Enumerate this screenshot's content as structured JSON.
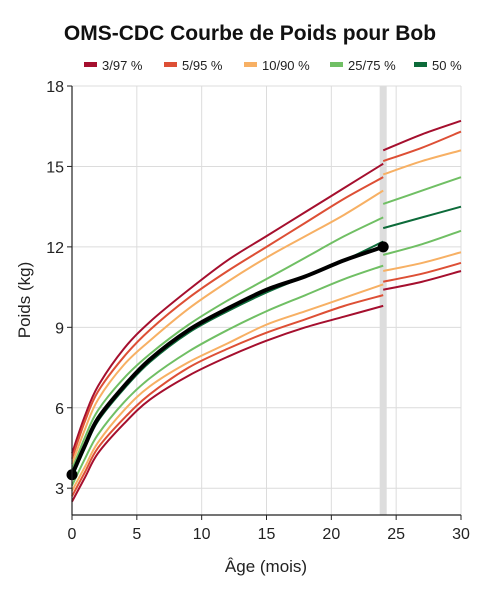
{
  "chart_data": {
    "type": "line",
    "title": "OMS-CDC Courbe de Poids pour Bob",
    "xlabel": "Âge (mois)",
    "ylabel": "Poids (kg)",
    "xlim": [
      0,
      30
    ],
    "ylim": [
      2,
      18
    ],
    "xticks": [
      "0",
      "5",
      "10",
      "15",
      "20",
      "25",
      "30"
    ],
    "yticks": [
      "3",
      "6",
      "9",
      "12",
      "15",
      "18"
    ],
    "grid": true,
    "legend_position": "top",
    "legend": [
      {
        "label": "3/97 %",
        "color": "#a50f2e"
      },
      {
        "label": "5/95 %",
        "color": "#dd4f35"
      },
      {
        "label": "10/90 %",
        "color": "#f7b064"
      },
      {
        "label": "25/75 %",
        "color": "#70bf64"
      },
      {
        "label": "50 %",
        "color": "#0d6b3a"
      }
    ],
    "age_marker": {
      "x": 24,
      "color": "#dddddd"
    },
    "series_early": [
      {
        "group": "3/97 %",
        "color": "#a50f2e",
        "x": [
          0,
          1,
          2,
          4,
          6,
          9,
          12,
          15,
          18,
          21,
          24
        ],
        "y": [
          4.3,
          5.7,
          6.8,
          8.2,
          9.2,
          10.4,
          11.5,
          12.4,
          13.3,
          14.2,
          15.1
        ]
      },
      {
        "group": "5/95 %",
        "color": "#dd4f35",
        "x": [
          0,
          1,
          2,
          4,
          6,
          9,
          12,
          15,
          18,
          21,
          24
        ],
        "y": [
          4.1,
          5.5,
          6.6,
          7.9,
          8.9,
          10.1,
          11.1,
          12.0,
          12.9,
          13.8,
          14.6
        ]
      },
      {
        "group": "10/90 %",
        "color": "#f7b064",
        "x": [
          0,
          1,
          2,
          4,
          6,
          9,
          12,
          15,
          18,
          21,
          24
        ],
        "y": [
          3.9,
          5.2,
          6.3,
          7.6,
          8.5,
          9.7,
          10.7,
          11.6,
          12.4,
          13.2,
          14.1
        ]
      },
      {
        "group": "25/75 %",
        "color": "#70bf64",
        "x": [
          0,
          1,
          2,
          4,
          6,
          9,
          12,
          15,
          18,
          21,
          24
        ],
        "y": [
          3.7,
          4.9,
          5.9,
          7.1,
          8.0,
          9.1,
          10.0,
          10.8,
          11.6,
          12.4,
          13.1
        ]
      },
      {
        "group": "50 %",
        "color": "#0d6b3a",
        "x": [
          0,
          1,
          2,
          4,
          6,
          9,
          12,
          15,
          18,
          21,
          24
        ],
        "y": [
          3.4,
          4.5,
          5.5,
          6.7,
          7.7,
          8.8,
          9.6,
          10.3,
          10.9,
          11.5,
          12.2
        ]
      },
      {
        "group": "25/75 %",
        "color": "#70bf64",
        "x": [
          0,
          1,
          2,
          4,
          6,
          9,
          12,
          15,
          18,
          21,
          24
        ],
        "y": [
          3.1,
          4.1,
          5.0,
          6.2,
          7.1,
          8.1,
          8.9,
          9.6,
          10.2,
          10.8,
          11.3
        ]
      },
      {
        "group": "10/90 %",
        "color": "#f7b064",
        "x": [
          0,
          1,
          2,
          4,
          6,
          9,
          12,
          15,
          18,
          21,
          24
        ],
        "y": [
          2.9,
          3.8,
          4.7,
          5.9,
          6.8,
          7.7,
          8.4,
          9.1,
          9.6,
          10.1,
          10.6
        ]
      },
      {
        "group": "5/95 %",
        "color": "#dd4f35",
        "x": [
          0,
          1,
          2,
          4,
          6,
          9,
          12,
          15,
          18,
          21,
          24
        ],
        "y": [
          2.7,
          3.6,
          4.5,
          5.6,
          6.5,
          7.5,
          8.2,
          8.8,
          9.3,
          9.8,
          10.2
        ]
      },
      {
        "group": "3/97 %",
        "color": "#a50f2e",
        "x": [
          0,
          1,
          2,
          4,
          6,
          9,
          12,
          15,
          18,
          21,
          24
        ],
        "y": [
          2.5,
          3.4,
          4.3,
          5.4,
          6.3,
          7.2,
          7.9,
          8.5,
          9.0,
          9.4,
          9.8
        ]
      }
    ],
    "series_late": [
      {
        "group": "3/97 %",
        "color": "#a50f2e",
        "x": [
          24,
          27,
          30
        ],
        "y": [
          15.6,
          16.2,
          16.7
        ]
      },
      {
        "group": "5/95 %",
        "color": "#dd4f35",
        "x": [
          24,
          27,
          30
        ],
        "y": [
          15.2,
          15.7,
          16.3
        ]
      },
      {
        "group": "10/90 %",
        "color": "#f7b064",
        "x": [
          24,
          27,
          30
        ],
        "y": [
          14.7,
          15.2,
          15.6
        ]
      },
      {
        "group": "25/75 %",
        "color": "#70bf64",
        "x": [
          24,
          27,
          30
        ],
        "y": [
          13.6,
          14.1,
          14.6
        ]
      },
      {
        "group": "50 %",
        "color": "#0d6b3a",
        "x": [
          24,
          27,
          30
        ],
        "y": [
          12.7,
          13.1,
          13.5
        ]
      },
      {
        "group": "25/75 %",
        "color": "#70bf64",
        "x": [
          24,
          27,
          30
        ],
        "y": [
          11.7,
          12.1,
          12.6
        ]
      },
      {
        "group": "10/90 %",
        "color": "#f7b064",
        "x": [
          24,
          27,
          30
        ],
        "y": [
          11.1,
          11.4,
          11.8
        ]
      },
      {
        "group": "5/95 %",
        "color": "#dd4f35",
        "x": [
          24,
          27,
          30
        ],
        "y": [
          10.7,
          11.0,
          11.4
        ]
      },
      {
        "group": "3/97 %",
        "color": "#a50f2e",
        "x": [
          24,
          27,
          30
        ],
        "y": [
          10.4,
          10.7,
          11.1
        ]
      }
    ],
    "child": {
      "color": "#000000",
      "x": [
        0,
        1,
        2,
        4,
        6,
        9,
        12,
        15,
        18,
        21,
        24
      ],
      "y": [
        3.5,
        4.6,
        5.6,
        6.8,
        7.8,
        8.9,
        9.7,
        10.4,
        10.9,
        11.5,
        12.0
      ],
      "points_x": [
        0,
        24
      ],
      "points_y": [
        3.5,
        12.0
      ]
    }
  }
}
